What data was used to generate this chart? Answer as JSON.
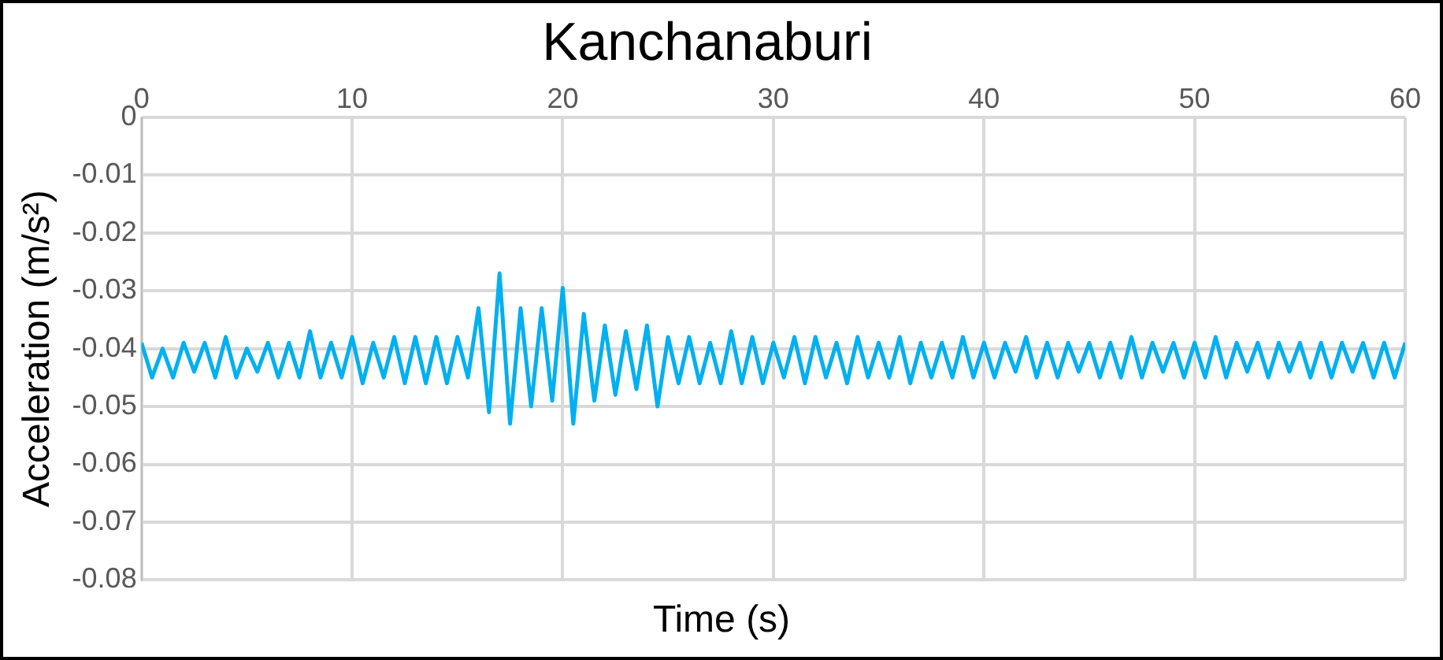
{
  "chart_data": {
    "type": "line",
    "title": "Kanchanaburi",
    "xlabel": "Time (s)",
    "ylabel": "Acceleration (m/s²)",
    "xlim": [
      0,
      60
    ],
    "xticks": [
      0,
      10,
      20,
      30,
      40,
      50,
      60
    ],
    "ylim": [
      -0.08,
      0
    ],
    "yticks": [
      0,
      -0.01,
      -0.02,
      -0.03,
      -0.04,
      -0.05,
      -0.06,
      -0.07,
      -0.08
    ],
    "grid": true,
    "legend": false,
    "marker": "none",
    "line_style": "solid",
    "series": [
      {
        "color": "#00b0f0",
        "x": [
          0,
          0.5,
          1,
          1.5,
          2,
          2.5,
          3,
          3.5,
          4,
          4.5,
          5,
          5.5,
          6,
          6.5,
          7,
          7.5,
          8,
          8.5,
          9,
          9.5,
          10,
          10.5,
          11,
          11.5,
          12,
          12.5,
          13,
          13.5,
          14,
          14.5,
          15,
          15.5,
          16,
          16.5,
          17,
          17.5,
          18,
          18.5,
          19,
          19.5,
          20,
          20.5,
          21,
          21.5,
          22,
          22.5,
          23,
          23.5,
          24,
          24.5,
          25,
          25.5,
          26,
          26.5,
          27,
          27.5,
          28,
          28.5,
          29,
          29.5,
          30,
          30.5,
          31,
          31.5,
          32,
          32.5,
          33,
          33.5,
          34,
          34.5,
          35,
          35.5,
          36,
          36.5,
          37,
          37.5,
          38,
          38.5,
          39,
          39.5,
          40,
          40.5,
          41,
          41.5,
          42,
          42.5,
          43,
          43.5,
          44,
          44.5,
          45,
          45.5,
          46,
          46.5,
          47,
          47.5,
          48,
          48.5,
          49,
          49.5,
          50,
          50.5,
          51,
          51.5,
          52,
          52.5,
          53,
          53.5,
          54,
          54.5,
          55,
          55.5,
          56,
          56.5,
          57,
          57.5,
          58,
          58.5,
          59,
          59.5,
          60
        ],
        "values": [
          -0.039,
          -0.045,
          -0.04,
          -0.045,
          -0.039,
          -0.044,
          -0.039,
          -0.045,
          -0.038,
          -0.045,
          -0.04,
          -0.044,
          -0.039,
          -0.045,
          -0.039,
          -0.045,
          -0.037,
          -0.045,
          -0.039,
          -0.045,
          -0.038,
          -0.046,
          -0.039,
          -0.045,
          -0.038,
          -0.046,
          -0.038,
          -0.046,
          -0.038,
          -0.046,
          -0.038,
          -0.045,
          -0.033,
          -0.051,
          -0.027,
          -0.053,
          -0.033,
          -0.05,
          -0.033,
          -0.049,
          -0.0295,
          -0.053,
          -0.034,
          -0.049,
          -0.036,
          -0.048,
          -0.037,
          -0.047,
          -0.036,
          -0.05,
          -0.038,
          -0.046,
          -0.038,
          -0.046,
          -0.039,
          -0.046,
          -0.037,
          -0.046,
          -0.038,
          -0.046,
          -0.039,
          -0.045,
          -0.038,
          -0.046,
          -0.038,
          -0.045,
          -0.039,
          -0.046,
          -0.038,
          -0.045,
          -0.039,
          -0.045,
          -0.038,
          -0.046,
          -0.039,
          -0.045,
          -0.039,
          -0.045,
          -0.038,
          -0.045,
          -0.039,
          -0.045,
          -0.039,
          -0.044,
          -0.038,
          -0.045,
          -0.039,
          -0.045,
          -0.039,
          -0.044,
          -0.039,
          -0.045,
          -0.039,
          -0.045,
          -0.038,
          -0.045,
          -0.039,
          -0.044,
          -0.039,
          -0.045,
          -0.039,
          -0.045,
          -0.038,
          -0.045,
          -0.039,
          -0.044,
          -0.039,
          -0.045,
          -0.039,
          -0.044,
          -0.039,
          -0.045,
          -0.039,
          -0.045,
          -0.039,
          -0.044,
          -0.039,
          -0.045,
          -0.039,
          -0.045,
          -0.039
        ]
      }
    ]
  }
}
